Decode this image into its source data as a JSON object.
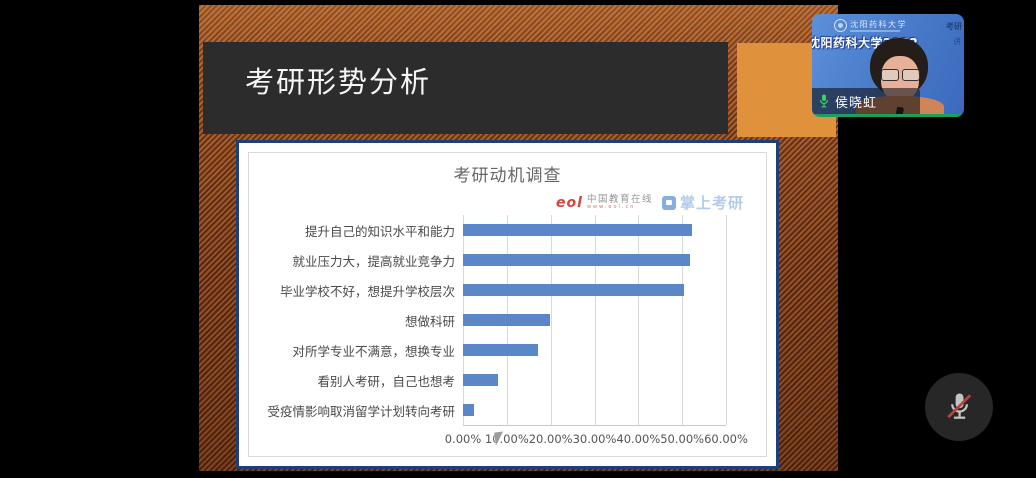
{
  "window": {
    "background": "#000000"
  },
  "slide": {
    "title": "考研形势分析",
    "titlebar_bg": "#2c2c2c",
    "title_color": "#f5f5f5",
    "accent_block_color": "#e0913c",
    "stripe_dark": "#5f2a14",
    "stripe_light": "#a35c2c"
  },
  "chart_data": {
    "type": "bar",
    "orientation": "horizontal",
    "title": "考研动机调查",
    "categories": [
      "提升自己的知识水平和能力",
      "就业压力大，提高就业竞争力",
      "毕业学校不好，想提升学校层次",
      "想做科研",
      "对所学专业不满意，想换专业",
      "看别人考研，自己也想考",
      "受疫情影响取消留学计划转向考研"
    ],
    "values": [
      52.3,
      51.8,
      50.4,
      19.8,
      17.0,
      8.0,
      2.5
    ],
    "unit": "%",
    "xlim": [
      0,
      60
    ],
    "x_ticks": [
      0,
      10,
      20,
      30,
      40,
      50,
      60
    ],
    "x_tick_labels": [
      "0.00%",
      "10.00%",
      "20.00%",
      "30.00%",
      "40.00%",
      "50.00%",
      "60.00%"
    ],
    "bar_color": "#5b86c8",
    "grid": true,
    "gridline_color": "#d9d9d9",
    "title_color": "#666666",
    "label_color": "#4a4a4a",
    "panel_border_color": "#203f77"
  },
  "watermarks": {
    "eol_mark": "eol",
    "eol_name": "中国教育在线",
    "eol_sub": "www.eol.cn",
    "pocket_name": "掌上考研"
  },
  "webcam": {
    "name": "侯晓虹",
    "banner_calligraphy": "沈阳药科大学",
    "banner_bold": "沈阳药科大学2022",
    "right_text_1": "考研",
    "right_text_2": "讲",
    "mic_active_color": "#3ad06a"
  },
  "controls": {
    "mic_muted": true,
    "mute_slash_color": "#b0473e"
  }
}
